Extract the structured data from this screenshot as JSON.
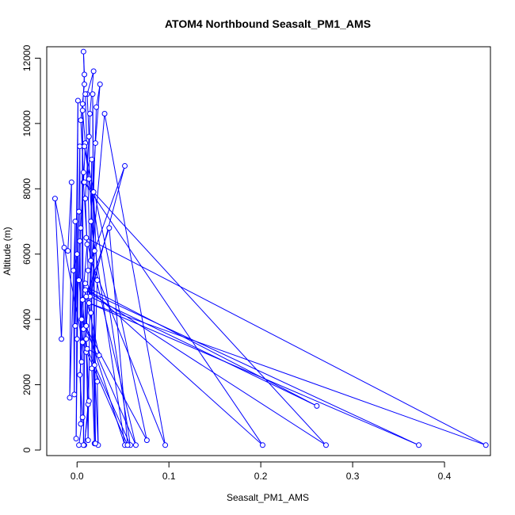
{
  "chart_data": {
    "type": "line",
    "title": "ATOM4 Northbound Seasalt_PM1_AMS",
    "xlabel": "Seasalt_PM1_AMS",
    "ylabel": "Altitude (m)",
    "xlim": [
      -0.033,
      0.45
    ],
    "ylim": [
      -170,
      12350
    ],
    "x_ticks": [
      0.0,
      0.1,
      0.2,
      0.3,
      0.4
    ],
    "x_tick_labels": [
      "0.0",
      "0.1",
      "0.2",
      "0.3",
      "0.4"
    ],
    "y_ticks": [
      0,
      2000,
      4000,
      6000,
      8000,
      10000,
      12000
    ],
    "y_tick_labels": [
      "0",
      "2000",
      "4000",
      "6000",
      "8000",
      "10000",
      "12000"
    ],
    "grid": false,
    "legend": "none",
    "marker": "open-circle",
    "colors": {
      "series": "#0000ff",
      "axes": "#000000",
      "background": "#ffffff"
    },
    "series": [
      {
        "points": [
          {
            "x": 0.002,
            "y": 150
          },
          {
            "x": 0.006,
            "y": 1000
          },
          {
            "x": 0.003,
            "y": 2300
          },
          {
            "x": 0.007,
            "y": 3700
          },
          {
            "x": 0.002,
            "y": 5200
          },
          {
            "x": 0.004,
            "y": 6800
          },
          {
            "x": 0.007,
            "y": 8500
          },
          {
            "x": 0.004,
            "y": 10100
          },
          {
            "x": 0.008,
            "y": 11200
          },
          {
            "x": 0.007,
            "y": 12200
          },
          {
            "x": 0.008,
            "y": 11500
          },
          {
            "x": 0.006,
            "y": 10400
          },
          {
            "x": 0.009,
            "y": 9400
          },
          {
            "x": 0.007,
            "y": 8200
          },
          {
            "x": 0.011,
            "y": 6300
          },
          {
            "x": 0.006,
            "y": 4600
          },
          {
            "x": 0.01,
            "y": 3000
          },
          {
            "x": 0.012,
            "y": 1400
          },
          {
            "x": 0.008,
            "y": 150
          },
          {
            "x": 0.013,
            "y": 1500
          },
          {
            "x": 0.01,
            "y": 3400
          },
          {
            "x": 0.012,
            "y": 5500
          },
          {
            "x": 0.009,
            "y": 7700
          },
          {
            "x": 0.013,
            "y": 9600
          },
          {
            "x": 0.011,
            "y": 10900
          },
          {
            "x": 0.018,
            "y": 11600
          },
          {
            "x": 0.014,
            "y": 10300
          },
          {
            "x": 0.013,
            "y": 8300
          },
          {
            "x": 0.019,
            "y": 6100
          },
          {
            "x": 0.015,
            "y": 4200
          },
          {
            "x": 0.022,
            "y": 2100
          },
          {
            "x": 0.023,
            "y": 150
          },
          {
            "x": 0.019,
            "y": 2600
          },
          {
            "x": 0.022,
            "y": 5200
          },
          {
            "x": 0.018,
            "y": 7900
          },
          {
            "x": 0.021,
            "y": 10500
          },
          {
            "x": 0.025,
            "y": 11200
          },
          {
            "x": 0.02,
            "y": 9400
          },
          {
            "x": 0.015,
            "y": 7000
          },
          {
            "x": 0.052,
            "y": 150
          },
          {
            "x": 0.01,
            "y": 3800
          },
          {
            "x": 0.03,
            "y": 10300
          },
          {
            "x": 0.096,
            "y": 150
          },
          {
            "x": 0.015,
            "y": 5800
          },
          {
            "x": 0.052,
            "y": 8700
          },
          {
            "x": 0.014,
            "y": 4700
          },
          {
            "x": 0.261,
            "y": 1350
          },
          {
            "x": 0.01,
            "y": 5000
          },
          {
            "x": 0.202,
            "y": 150
          },
          {
            "x": 0.008,
            "y": 8200
          },
          {
            "x": 0.271,
            "y": 150
          },
          {
            "x": 0.009,
            "y": 4900
          },
          {
            "x": 0.372,
            "y": 150
          },
          {
            "x": 0.013,
            "y": 4500
          },
          {
            "x": 0.445,
            "y": 150
          },
          {
            "x": 0.01,
            "y": 6500
          },
          {
            "x": 0.064,
            "y": 150
          },
          {
            "x": 0.005,
            "y": 4000
          },
          {
            "x": 0.076,
            "y": 300
          },
          {
            "x": 0.008,
            "y": 9300
          },
          {
            "x": 0.058,
            "y": 150
          },
          {
            "x": 0.011,
            "y": 3100
          },
          {
            "x": 0.024,
            "y": 2900
          },
          {
            "x": 0.01,
            "y": 4700
          },
          {
            "x": 0.035,
            "y": 6800
          },
          {
            "x": 0.055,
            "y": 150
          },
          {
            "x": 0.006,
            "y": 3300
          },
          {
            "x": -0.024,
            "y": 7700
          },
          {
            "x": -0.017,
            "y": 3400
          },
          {
            "x": -0.014,
            "y": 6200
          },
          {
            "x": -0.01,
            "y": 6100
          },
          {
            "x": -0.006,
            "y": 8200
          },
          {
            "x": -0.008,
            "y": 1600
          },
          {
            "x": -0.002,
            "y": 7000
          },
          {
            "x": -0.003,
            "y": 1700
          },
          {
            "x": -0.004,
            "y": 5500
          },
          {
            "x": 0.0,
            "y": 6000
          },
          {
            "x": -0.002,
            "y": 3800
          },
          {
            "x": 0.001,
            "y": 10700
          },
          {
            "x": -0.001,
            "y": 350
          },
          {
            "x": 0.002,
            "y": 7300
          },
          {
            "x": 0.0,
            "y": 3400
          },
          {
            "x": 0.003,
            "y": 9300
          },
          {
            "x": 0.004,
            "y": 800
          },
          {
            "x": 0.003,
            "y": 6400
          },
          {
            "x": 0.005,
            "y": 2700
          },
          {
            "x": 0.006,
            "y": 10600
          },
          {
            "x": 0.007,
            "y": 150
          },
          {
            "x": 0.009,
            "y": 5100
          },
          {
            "x": 0.012,
            "y": 300
          },
          {
            "x": 0.016,
            "y": 8900
          },
          {
            "x": 0.016,
            "y": 2500
          },
          {
            "x": 0.019,
            "y": 200
          },
          {
            "x": 0.017,
            "y": 10900
          },
          {
            "x": 0.02,
            "y": 200
          },
          {
            "x": 0.009,
            "y": 10900
          }
        ]
      }
    ]
  }
}
